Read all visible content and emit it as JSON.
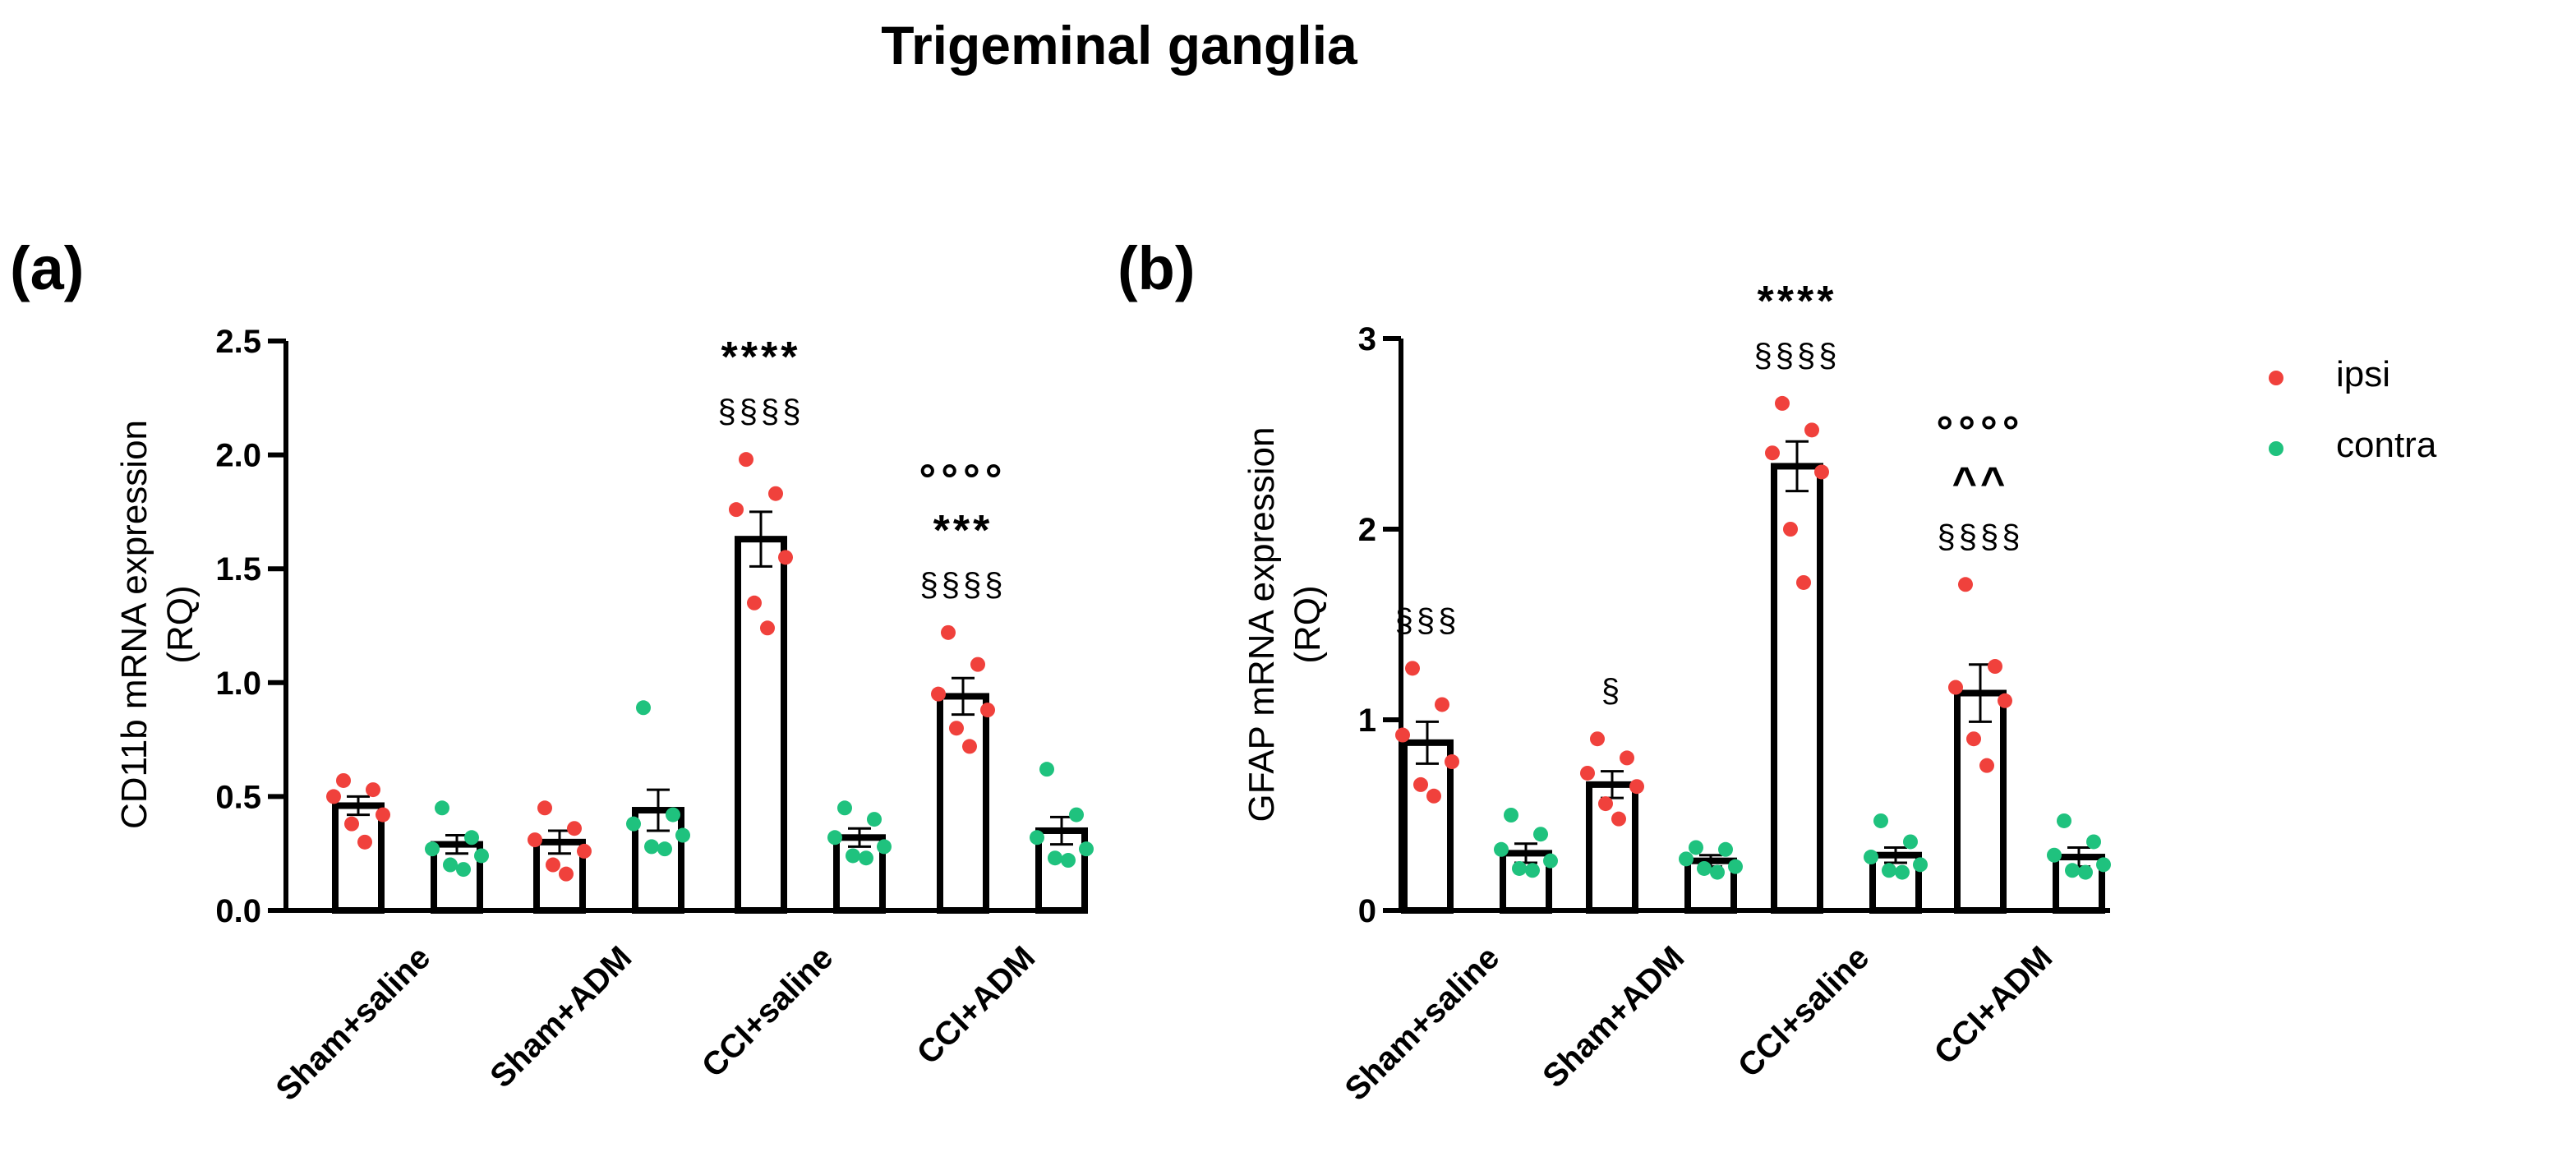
{
  "figure_title": "Trigeminal ganglia",
  "legend": [
    {
      "label": "ipsi",
      "color": "#f0413c"
    },
    {
      "label": "contra",
      "color": "#1fc27e"
    }
  ],
  "colors": {
    "ipsi": "#f0413c",
    "contra": "#1fc27e",
    "bar_fill": "#ffffff",
    "stroke": "#000000"
  },
  "chart_data": [
    {
      "type": "bar",
      "panel_label": "(a)",
      "title": "",
      "xlabel": "",
      "ylabel": "CD11b mRNA expression (RQ)",
      "ylabel_lines": [
        "CD11b mRNA expression",
        "(RQ)"
      ],
      "ylim": [
        0,
        2.5
      ],
      "yticks": [
        0.0,
        0.5,
        1.0,
        1.5,
        2.0,
        2.5
      ],
      "ytick_labels": [
        "0.0",
        "0.5",
        "1.0",
        "1.5",
        "2.0",
        "2.5"
      ],
      "categories": [
        "Sham+saline",
        "Sham+ADM",
        "CCI+saline",
        "CCI+ADM"
      ],
      "series": [
        {
          "name": "ipsi",
          "values": [
            0.46,
            0.3,
            1.63,
            0.94
          ],
          "sem": [
            0.04,
            0.05,
            0.12,
            0.08
          ],
          "points": [
            [
              0.57,
              0.53,
              0.5,
              0.42,
              0.38,
              0.3
            ],
            [
              0.45,
              0.36,
              0.31,
              0.26,
              0.2,
              0.16
            ],
            [
              1.98,
              1.83,
              1.76,
              1.55,
              1.35,
              1.24
            ],
            [
              1.22,
              1.08,
              0.95,
              0.88,
              0.8,
              0.72
            ]
          ]
        },
        {
          "name": "contra",
          "values": [
            0.29,
            0.44,
            0.32,
            0.35
          ],
          "sem": [
            0.04,
            0.09,
            0.04,
            0.06
          ],
          "points": [
            [
              0.45,
              0.32,
              0.27,
              0.24,
              0.2,
              0.18
            ],
            [
              0.89,
              0.42,
              0.38,
              0.33,
              0.28,
              0.27
            ],
            [
              0.45,
              0.4,
              0.32,
              0.28,
              0.24,
              0.23
            ],
            [
              0.62,
              0.42,
              0.32,
              0.27,
              0.23,
              0.22
            ]
          ]
        }
      ],
      "annotations": [
        {
          "category": "CCI+saline",
          "lines": [
            "****",
            "§§§§"
          ]
        },
        {
          "category": "CCI+ADM",
          "lines": [
            "°°°°",
            "***",
            "§§§§"
          ]
        }
      ]
    },
    {
      "type": "bar",
      "panel_label": "(b)",
      "title": "",
      "xlabel": "",
      "ylabel": "GFAP mRNA expression (RQ)",
      "ylabel_lines": [
        "GFAP mRNA expression",
        "(RQ)"
      ],
      "ylim": [
        0,
        3
      ],
      "yticks": [
        0,
        1,
        2,
        3
      ],
      "ytick_labels": [
        "0",
        "1",
        "2",
        "3"
      ],
      "categories": [
        "Sham+saline",
        "Sham+ADM",
        "CCI+saline",
        "CCI+ADM"
      ],
      "series": [
        {
          "name": "ipsi",
          "values": [
            0.88,
            0.66,
            2.33,
            1.14
          ],
          "sem": [
            0.11,
            0.07,
            0.13,
            0.15
          ],
          "points": [
            [
              1.27,
              1.08,
              0.92,
              0.78,
              0.66,
              0.6
            ],
            [
              0.9,
              0.8,
              0.72,
              0.65,
              0.56,
              0.48
            ],
            [
              2.66,
              2.52,
              2.4,
              2.3,
              2.0,
              1.72
            ],
            [
              1.71,
              1.28,
              1.17,
              1.1,
              0.9,
              0.76
            ]
          ]
        },
        {
          "name": "contra",
          "values": [
            0.3,
            0.26,
            0.29,
            0.28
          ],
          "sem": [
            0.05,
            0.03,
            0.04,
            0.05
          ],
          "points": [
            [
              0.5,
              0.4,
              0.32,
              0.26,
              0.22,
              0.21
            ],
            [
              0.33,
              0.32,
              0.27,
              0.23,
              0.22,
              0.2
            ],
            [
              0.47,
              0.36,
              0.28,
              0.24,
              0.21,
              0.2
            ],
            [
              0.47,
              0.36,
              0.29,
              0.24,
              0.21,
              0.2
            ]
          ]
        }
      ],
      "annotations": [
        {
          "category": "Sham+saline",
          "lines": [
            "§§§"
          ]
        },
        {
          "category": "Sham+ADM",
          "lines": [
            "§"
          ]
        },
        {
          "category": "CCI+saline",
          "lines": [
            "****",
            "§§§§"
          ]
        },
        {
          "category": "CCI+ADM",
          "lines": [
            "°°°°",
            "^^",
            "§§§§"
          ]
        }
      ]
    }
  ]
}
